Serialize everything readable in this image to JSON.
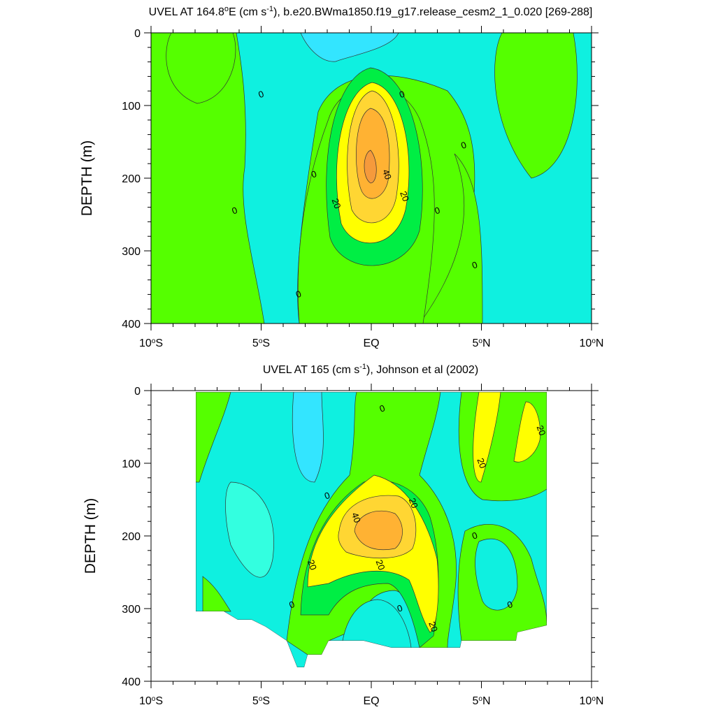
{
  "colors": {
    "level_neg20": "#00e5ff",
    "level_neg10": "#0ff0e0",
    "level_neg10b": "#33ffe0",
    "level_0": "#55ff00",
    "level_10": "#00ee44",
    "level_20": "#ffff00",
    "level_30": "#ffd633",
    "level_40": "#ffb233",
    "level_50": "#f59a3c",
    "contour_line": "#333333"
  },
  "chart_data": [
    {
      "type": "contour",
      "title": "UVEL AT 164.8°E (cm s-1), b.e20.BWma1850.f19_g17.release_cesm2_1_0.020 [269-288]",
      "title_parts": {
        "main": "UVEL AT 164.8",
        "deg": "o",
        "after_deg": "E (cm s",
        "sup": "-1",
        "rest": "), b.e20.BWma1850.f19_g17.release_cesm2_1_0.020 [269-288]"
      },
      "ylabel": "DEPTH (m)",
      "xlim": [
        -10,
        10
      ],
      "ylim": [
        400,
        0
      ],
      "x_ticks": [
        {
          "value": -10,
          "num": "10",
          "sup": "o",
          "hemi": "S"
        },
        {
          "value": -5,
          "num": "5",
          "sup": "o",
          "hemi": "S"
        },
        {
          "value": 0,
          "num": "EQ",
          "sup": "",
          "hemi": ""
        },
        {
          "value": 5,
          "num": "5",
          "sup": "o",
          "hemi": "N"
        },
        {
          "value": 10,
          "num": "10",
          "sup": "o",
          "hemi": "N"
        }
      ],
      "y_ticks": [
        {
          "value": 0,
          "label": "0"
        },
        {
          "value": 100,
          "label": "100"
        },
        {
          "value": 200,
          "label": "200"
        },
        {
          "value": 300,
          "label": "300"
        },
        {
          "value": 400,
          "label": "400"
        }
      ],
      "contour_labels": [
        {
          "text": "0",
          "lat": -5.0,
          "depth": 85
        },
        {
          "text": "0",
          "lat": 1.4,
          "depth": 85
        },
        {
          "text": "0",
          "lat": -2.6,
          "depth": 195
        },
        {
          "text": "0",
          "lat": 4.2,
          "depth": 155
        },
        {
          "text": "0",
          "lat": -6.2,
          "depth": 245
        },
        {
          "text": "0",
          "lat": 3.0,
          "depth": 245
        },
        {
          "text": "0",
          "lat": 4.7,
          "depth": 320
        },
        {
          "text": "0",
          "lat": -3.3,
          "depth": 360
        },
        {
          "text": "40",
          "lat": 0.7,
          "depth": 195
        },
        {
          "text": "20",
          "lat": 1.5,
          "depth": 225
        },
        {
          "text": "20",
          "lat": -1.6,
          "depth": 235
        }
      ]
    },
    {
      "type": "contour",
      "title": "UVEL AT 165 (cm s-1), Johnson et al (2002)",
      "title_parts": {
        "main": "UVEL AT 165 (cm s",
        "sup": "-1",
        "rest": "), Johnson et al (2002)"
      },
      "ylabel": "DEPTH (m)",
      "xlim": [
        -10,
        10
      ],
      "ylim": [
        400,
        0
      ],
      "x_ticks": [
        {
          "value": -10,
          "num": "10",
          "sup": "o",
          "hemi": "S"
        },
        {
          "value": -5,
          "num": "5",
          "sup": "o",
          "hemi": "S"
        },
        {
          "value": 0,
          "num": "EQ",
          "sup": "",
          "hemi": ""
        },
        {
          "value": 5,
          "num": "5",
          "sup": "o",
          "hemi": "N"
        },
        {
          "value": 10,
          "num": "10",
          "sup": "o",
          "hemi": "N"
        }
      ],
      "y_ticks": [
        {
          "value": 0,
          "label": "0"
        },
        {
          "value": 100,
          "label": "100"
        },
        {
          "value": 200,
          "label": "200"
        },
        {
          "value": 300,
          "label": "300"
        },
        {
          "value": 400,
          "label": "400"
        }
      ],
      "contour_labels": [
        {
          "text": "0",
          "lat": 0.5,
          "depth": 25
        },
        {
          "text": "20",
          "lat": 7.7,
          "depth": 55
        },
        {
          "text": "20",
          "lat": 5.0,
          "depth": 100
        },
        {
          "text": "0",
          "lat": -2.0,
          "depth": 145
        },
        {
          "text": "20",
          "lat": 1.9,
          "depth": 155
        },
        {
          "text": "40",
          "lat": -0.7,
          "depth": 175
        },
        {
          "text": "0",
          "lat": 4.7,
          "depth": 200
        },
        {
          "text": "20",
          "lat": -2.7,
          "depth": 240
        },
        {
          "text": "20",
          "lat": 0.4,
          "depth": 240
        },
        {
          "text": "0",
          "lat": -3.6,
          "depth": 295
        },
        {
          "text": "0",
          "lat": 1.3,
          "depth": 300
        },
        {
          "text": "0",
          "lat": 6.3,
          "depth": 295
        },
        {
          "text": "20",
          "lat": 2.8,
          "depth": 325
        }
      ]
    }
  ]
}
